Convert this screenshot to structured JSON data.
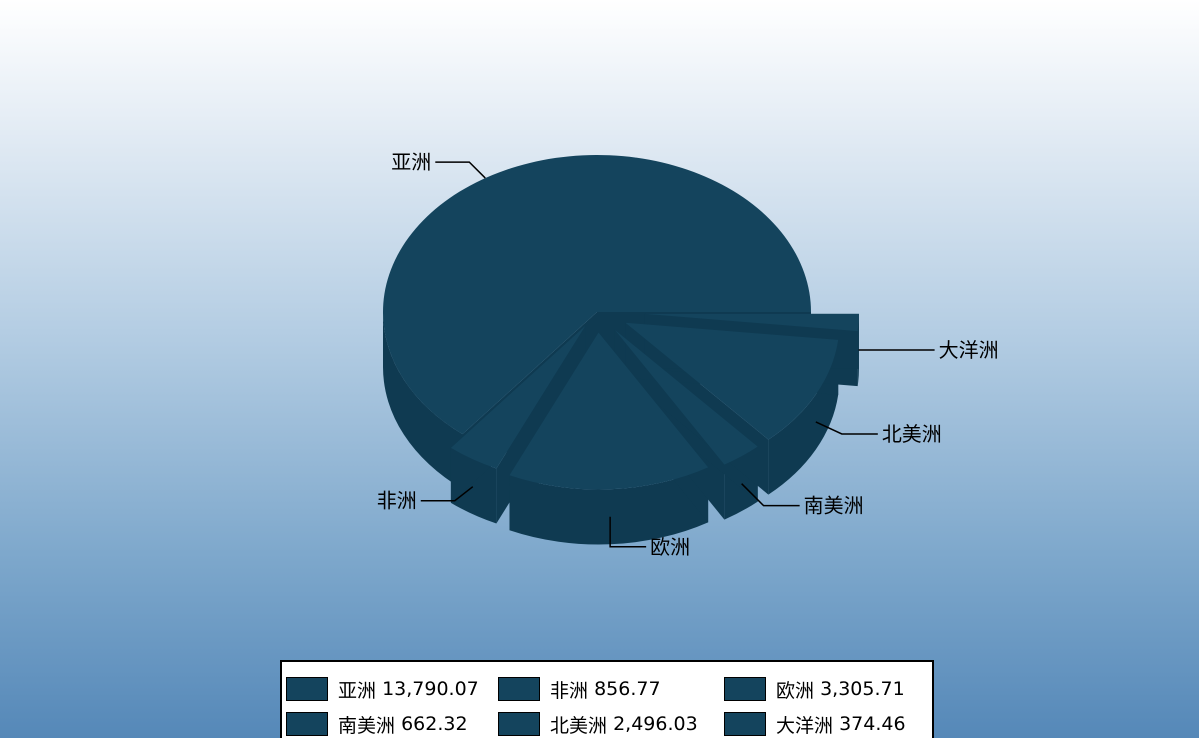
{
  "chart_data": {
    "type": "pie",
    "style": "3d-exploded",
    "slice_color": "#14445d",
    "side_color": "#0f3a51",
    "slices": [
      {
        "label": "亚洲",
        "value": 13790.07,
        "value_text": "13,790.07"
      },
      {
        "label": "非洲",
        "value": 856.77,
        "value_text": "856.77"
      },
      {
        "label": "欧洲",
        "value": 3305.71,
        "value_text": "3,305.71"
      },
      {
        "label": "南美洲",
        "value": 662.32,
        "value_text": "662.32"
      },
      {
        "label": "北美洲",
        "value": 2496.03,
        "value_text": "2,496.03"
      },
      {
        "label": "大洋洲",
        "value": 374.46,
        "value_text": "374.46"
      }
    ],
    "legend_position": "bottom"
  }
}
